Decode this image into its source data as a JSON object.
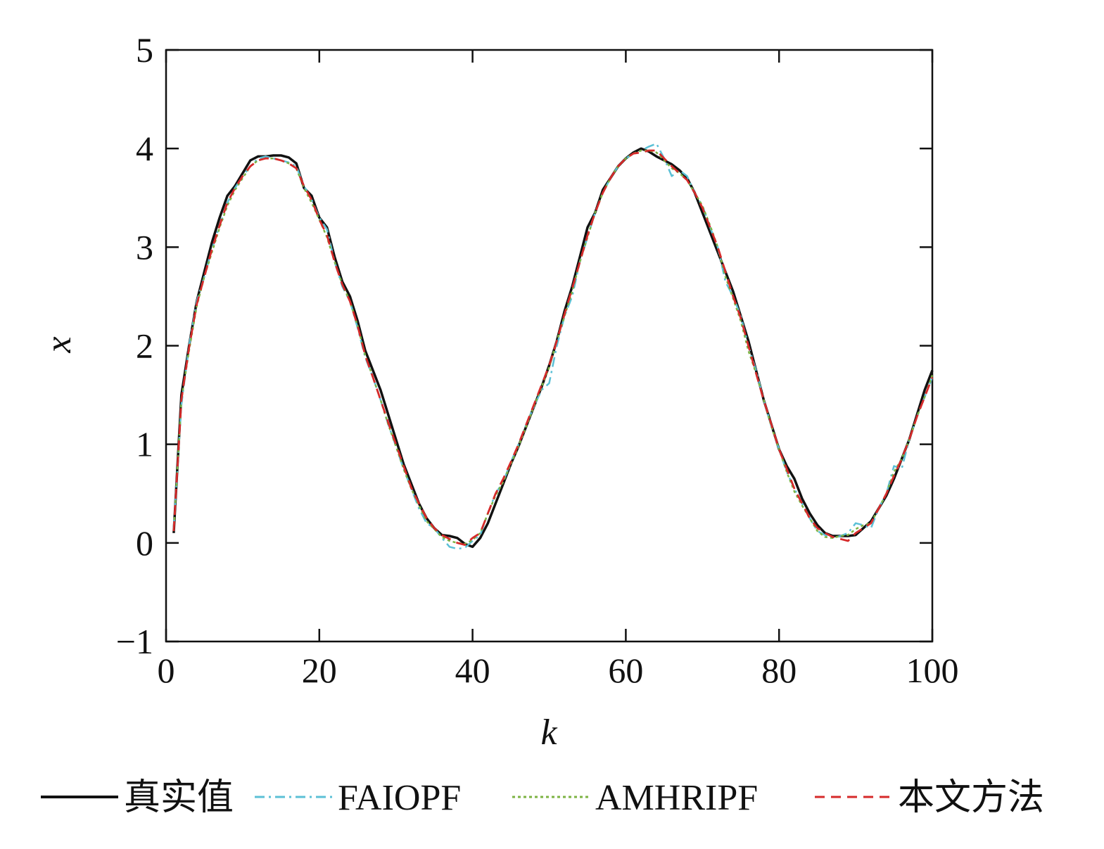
{
  "chart_data": {
    "type": "line",
    "title": "",
    "xlabel": "k",
    "ylabel": "x",
    "xlim": [
      0,
      100
    ],
    "ylim": [
      -1,
      5
    ],
    "xticks": [
      0,
      20,
      40,
      60,
      80,
      100
    ],
    "xtick_labels": [
      "0",
      "20",
      "40",
      "60",
      "80",
      "100"
    ],
    "yticks": [
      -1,
      0,
      1,
      2,
      3,
      4,
      5
    ],
    "ytick_labels": [
      "−1",
      "0",
      "1",
      "2",
      "3",
      "4",
      "5"
    ],
    "grid": false,
    "legend_position": "bottom",
    "series": [
      {
        "name": "真实值",
        "color": "#111111",
        "dash": "solid",
        "x": [
          1,
          2,
          3,
          4,
          5,
          6,
          7,
          8,
          9,
          10,
          11,
          12,
          13,
          14,
          15,
          16,
          17,
          18,
          19,
          20,
          21,
          22,
          23,
          24,
          25,
          26,
          27,
          28,
          29,
          30,
          31,
          32,
          33,
          34,
          35,
          36,
          37,
          38,
          39,
          40,
          41,
          42,
          43,
          44,
          45,
          46,
          47,
          48,
          49,
          50,
          51,
          52,
          53,
          54,
          55,
          56,
          57,
          58,
          59,
          60,
          61,
          62,
          63,
          64,
          65,
          66,
          67,
          68,
          69,
          70,
          71,
          72,
          73,
          74,
          75,
          76,
          77,
          78,
          79,
          80,
          81,
          82,
          83,
          84,
          85,
          86,
          87,
          88,
          89,
          90,
          91,
          92,
          93,
          94,
          95,
          96,
          97,
          98,
          99,
          100
        ],
        "y": [
          0.1,
          1.5,
          2.0,
          2.45,
          2.75,
          3.05,
          3.3,
          3.52,
          3.62,
          3.75,
          3.88,
          3.92,
          3.92,
          3.93,
          3.93,
          3.91,
          3.85,
          3.6,
          3.52,
          3.3,
          3.2,
          2.9,
          2.65,
          2.5,
          2.25,
          1.95,
          1.75,
          1.55,
          1.3,
          1.05,
          0.8,
          0.6,
          0.4,
          0.25,
          0.15,
          0.08,
          0.07,
          0.05,
          -0.01,
          -0.04,
          0.05,
          0.2,
          0.4,
          0.6,
          0.8,
          0.98,
          1.18,
          1.38,
          1.58,
          1.8,
          2.05,
          2.35,
          2.6,
          2.9,
          3.2,
          3.35,
          3.58,
          3.7,
          3.82,
          3.9,
          3.96,
          4.0,
          3.97,
          3.92,
          3.88,
          3.84,
          3.78,
          3.7,
          3.55,
          3.35,
          3.15,
          2.95,
          2.75,
          2.55,
          2.3,
          2.05,
          1.75,
          1.45,
          1.2,
          0.95,
          0.78,
          0.65,
          0.45,
          0.3,
          0.18,
          0.1,
          0.07,
          0.07,
          0.07,
          0.08,
          0.15,
          0.22,
          0.35,
          0.48,
          0.65,
          0.85,
          1.05,
          1.3,
          1.55,
          1.75
        ]
      },
      {
        "name": "FAIOPF",
        "color": "#5bc0d6",
        "dash": "dashdot",
        "x": [
          1,
          2,
          3,
          4,
          5,
          6,
          7,
          8,
          9,
          10,
          11,
          12,
          13,
          14,
          15,
          16,
          17,
          18,
          19,
          20,
          21,
          22,
          23,
          24,
          25,
          26,
          27,
          28,
          29,
          30,
          31,
          32,
          33,
          34,
          35,
          36,
          37,
          38,
          39,
          40,
          41,
          42,
          43,
          44,
          45,
          46,
          47,
          48,
          49,
          50,
          51,
          52,
          53,
          54,
          55,
          56,
          57,
          58,
          59,
          60,
          61,
          62,
          63,
          64,
          65,
          66,
          67,
          68,
          69,
          70,
          71,
          72,
          73,
          74,
          75,
          76,
          77,
          78,
          79,
          80,
          81,
          82,
          83,
          84,
          85,
          86,
          87,
          88,
          89,
          90,
          91,
          92,
          93,
          94,
          95,
          96,
          97,
          98,
          99,
          100
        ],
        "y": [
          0.15,
          1.4,
          2.0,
          2.45,
          2.7,
          2.98,
          3.22,
          3.45,
          3.6,
          3.72,
          3.82,
          3.9,
          3.92,
          3.9,
          3.88,
          3.86,
          3.82,
          3.62,
          3.48,
          3.3,
          3.18,
          2.85,
          2.6,
          2.45,
          2.18,
          1.88,
          1.68,
          1.45,
          1.2,
          0.98,
          0.75,
          0.55,
          0.35,
          0.2,
          0.15,
          0.05,
          -0.04,
          -0.06,
          -0.05,
          0.02,
          0.08,
          0.3,
          0.5,
          0.62,
          0.82,
          1.0,
          1.2,
          1.38,
          1.55,
          1.62,
          2.0,
          2.3,
          2.5,
          2.85,
          3.1,
          3.35,
          3.55,
          3.7,
          3.82,
          3.9,
          3.95,
          3.98,
          4.02,
          4.05,
          3.9,
          3.72,
          3.78,
          3.72,
          3.55,
          3.42,
          3.2,
          3.0,
          2.65,
          2.5,
          2.3,
          2.0,
          1.75,
          1.45,
          1.18,
          0.95,
          0.72,
          0.55,
          0.4,
          0.25,
          0.12,
          0.08,
          0.05,
          0.07,
          0.1,
          0.2,
          0.18,
          0.15,
          0.35,
          0.5,
          0.78,
          0.75,
          1.05,
          1.28,
          1.48,
          1.68
        ]
      },
      {
        "name": "AMHRIPF",
        "color": "#7cb342",
        "dash": "dotted",
        "x": [
          1,
          2,
          3,
          4,
          5,
          6,
          7,
          8,
          9,
          10,
          11,
          12,
          13,
          14,
          15,
          16,
          17,
          18,
          19,
          20,
          21,
          22,
          23,
          24,
          25,
          26,
          27,
          28,
          29,
          30,
          31,
          32,
          33,
          34,
          35,
          36,
          37,
          38,
          39,
          40,
          41,
          42,
          43,
          44,
          45,
          46,
          47,
          48,
          49,
          50,
          51,
          52,
          53,
          54,
          55,
          56,
          57,
          58,
          59,
          60,
          61,
          62,
          63,
          64,
          65,
          66,
          67,
          68,
          69,
          70,
          71,
          72,
          73,
          74,
          75,
          76,
          77,
          78,
          79,
          80,
          81,
          82,
          83,
          84,
          85,
          86,
          87,
          88,
          89,
          90,
          91,
          92,
          93,
          94,
          95,
          96,
          97,
          98,
          99,
          100
        ],
        "y": [
          0.12,
          1.45,
          1.95,
          2.4,
          2.7,
          2.95,
          3.2,
          3.42,
          3.58,
          3.7,
          3.82,
          3.88,
          3.9,
          3.9,
          3.88,
          3.85,
          3.8,
          3.6,
          3.45,
          3.28,
          3.1,
          2.85,
          2.62,
          2.45,
          2.2,
          1.9,
          1.68,
          1.45,
          1.2,
          0.98,
          0.75,
          0.55,
          0.38,
          0.22,
          0.14,
          0.06,
          0.02,
          0.0,
          -0.01,
          0.03,
          0.1,
          0.3,
          0.48,
          0.62,
          0.8,
          0.98,
          1.18,
          1.38,
          1.58,
          1.78,
          2.05,
          2.3,
          2.55,
          2.85,
          3.1,
          3.35,
          3.55,
          3.7,
          3.82,
          3.9,
          3.95,
          3.98,
          3.98,
          3.96,
          3.88,
          3.8,
          3.75,
          3.68,
          3.55,
          3.42,
          3.22,
          3.0,
          2.7,
          2.48,
          2.25,
          1.95,
          1.72,
          1.45,
          1.18,
          0.95,
          0.72,
          0.52,
          0.38,
          0.25,
          0.12,
          0.06,
          0.05,
          0.07,
          0.08,
          0.14,
          0.18,
          0.2,
          0.35,
          0.5,
          0.72,
          0.85,
          1.05,
          1.28,
          1.48,
          1.7
        ]
      },
      {
        "name": "本文方法",
        "color": "#d62a2a",
        "dash": "dashed",
        "x": [
          1,
          2,
          3,
          4,
          5,
          6,
          7,
          8,
          9,
          10,
          11,
          12,
          13,
          14,
          15,
          16,
          17,
          18,
          19,
          20,
          21,
          22,
          23,
          24,
          25,
          26,
          27,
          28,
          29,
          30,
          31,
          32,
          33,
          34,
          35,
          36,
          37,
          38,
          39,
          40,
          41,
          42,
          43,
          44,
          45,
          46,
          47,
          48,
          49,
          50,
          51,
          52,
          53,
          54,
          55,
          56,
          57,
          58,
          59,
          60,
          61,
          62,
          63,
          64,
          65,
          66,
          67,
          68,
          69,
          70,
          71,
          72,
          73,
          74,
          75,
          76,
          77,
          78,
          79,
          80,
          81,
          82,
          83,
          84,
          85,
          86,
          87,
          88,
          89,
          90,
          91,
          92,
          93,
          94,
          95,
          96,
          97,
          98,
          99,
          100
        ],
        "y": [
          0.12,
          1.45,
          1.98,
          2.42,
          2.7,
          2.98,
          3.22,
          3.45,
          3.6,
          3.72,
          3.82,
          3.88,
          3.9,
          3.9,
          3.88,
          3.85,
          3.8,
          3.62,
          3.48,
          3.28,
          3.12,
          2.85,
          2.62,
          2.45,
          2.2,
          1.9,
          1.68,
          1.45,
          1.22,
          1.0,
          0.78,
          0.56,
          0.4,
          0.25,
          0.15,
          0.08,
          0.04,
          0.0,
          -0.02,
          0.05,
          0.1,
          0.3,
          0.5,
          0.65,
          0.82,
          1.0,
          1.2,
          1.4,
          1.6,
          1.8,
          2.05,
          2.32,
          2.58,
          2.85,
          3.12,
          3.35,
          3.55,
          3.7,
          3.82,
          3.9,
          3.95,
          3.96,
          3.98,
          3.98,
          3.9,
          3.82,
          3.75,
          3.68,
          3.55,
          3.4,
          3.2,
          3.0,
          2.75,
          2.5,
          2.28,
          2.0,
          1.72,
          1.45,
          1.2,
          0.95,
          0.75,
          0.55,
          0.4,
          0.25,
          0.15,
          0.1,
          0.06,
          0.04,
          0.02,
          0.1,
          0.15,
          0.2,
          0.35,
          0.5,
          0.68,
          0.85,
          1.05,
          1.28,
          1.48,
          1.68
        ]
      }
    ]
  }
}
